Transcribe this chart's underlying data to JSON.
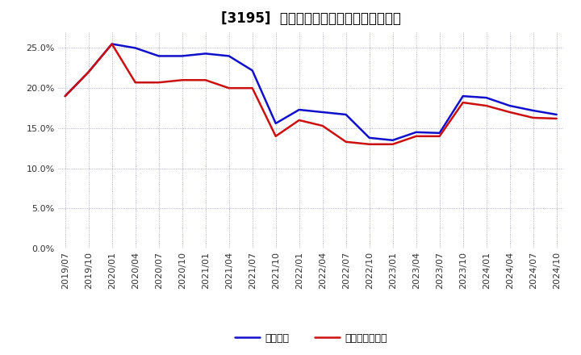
{
  "title": "[3195]  固定比率、固定長期適合率の推移",
  "ylim": [
    0.0,
    0.27
  ],
  "yticks": [
    0.0,
    0.05,
    0.1,
    0.15,
    0.2,
    0.25
  ],
  "ytick_labels": [
    "0.0%",
    "5.0%",
    "10.0%",
    "15.0%",
    "20.0%",
    "25.0%"
  ],
  "xtick_labels": [
    "2019/07",
    "2019/10",
    "2020/01",
    "2020/04",
    "2020/07",
    "2020/10",
    "2021/01",
    "2021/04",
    "2021/07",
    "2021/10",
    "2022/01",
    "2022/04",
    "2022/07",
    "2022/10",
    "2023/01",
    "2023/04",
    "2023/07",
    "2023/10",
    "2024/01",
    "2024/04",
    "2024/07",
    "2024/10"
  ],
  "line1_label": "固定比率",
  "line1_color": "#1010cc",
  "line2_label": "固定長期適合率",
  "line2_color": "#cc1010",
  "line1_y": [
    0.19,
    0.22,
    0.255,
    0.25,
    0.24,
    0.24,
    0.243,
    0.24,
    0.222,
    0.156,
    0.173,
    0.17,
    0.167,
    0.138,
    0.135,
    0.145,
    0.144,
    0.19,
    0.188,
    0.178,
    0.172,
    0.167
  ],
  "line2_y": [
    0.19,
    0.22,
    0.255,
    0.207,
    0.207,
    0.21,
    0.21,
    0.2,
    0.2,
    0.14,
    0.16,
    0.153,
    0.133,
    0.13,
    0.13,
    0.14,
    0.14,
    0.182,
    0.178,
    0.17,
    0.163,
    0.162
  ],
  "background_color": "#ffffff",
  "grid_color": "#9999bb",
  "title_fontsize": 12,
  "axis_fontsize": 8,
  "legend_fontsize": 9,
  "line_width": 1.8
}
